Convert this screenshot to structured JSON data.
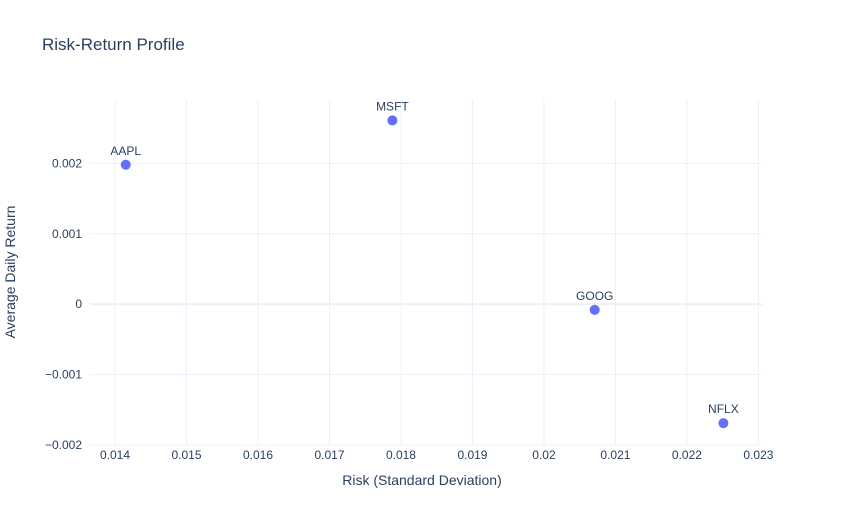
{
  "chart_data": {
    "type": "scatter",
    "title": "Risk-Return Profile",
    "xlabel": "Risk (Standard Deviation)",
    "ylabel": "Average Daily Return",
    "xlim": [
      0.01365,
      0.02305
    ],
    "ylim": [
      -0.002,
      0.0029
    ],
    "x_ticks": [
      0.014,
      0.015,
      0.016,
      0.017,
      0.018,
      0.019,
      0.02,
      0.021,
      0.022,
      0.023
    ],
    "x_tick_labels": [
      "0.014",
      "0.015",
      "0.016",
      "0.017",
      "0.018",
      "0.019",
      "0.02",
      "0.021",
      "0.022",
      "0.023"
    ],
    "y_ticks": [
      -0.002,
      -0.001,
      0,
      0.001,
      0.002
    ],
    "y_tick_labels": [
      "−0.002",
      "−0.001",
      "0",
      "0.001",
      "0.002"
    ],
    "grid": true,
    "marker_color": "#636efa",
    "points": [
      {
        "label": "AAPL",
        "x": 0.01415,
        "y": 0.00198
      },
      {
        "label": "MSFT",
        "x": 0.01788,
        "y": 0.00261
      },
      {
        "label": "GOOG",
        "x": 0.02071,
        "y": -8e-05
      },
      {
        "label": "NFLX",
        "x": 0.02251,
        "y": -0.00169
      }
    ]
  }
}
